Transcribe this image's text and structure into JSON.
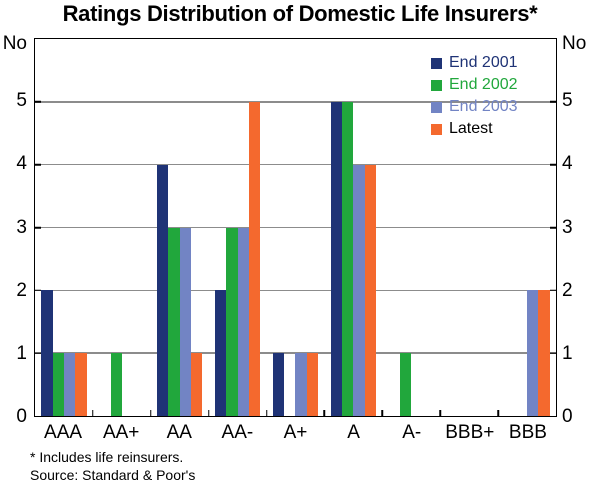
{
  "title": "Ratings Distribution of Domestic Life Insurers*",
  "axis": {
    "unit_left": "No",
    "unit_right": "No"
  },
  "footnotes": {
    "note": "* Includes life reinsurers.",
    "source": "Source: Standard & Poor's"
  },
  "colors": {
    "end_2001": "#1f3376",
    "end_2002": "#21a73c",
    "end_2003": "#7284c4",
    "latest": "#f4692e",
    "gridline": "#8c8c8c",
    "frame": "#000000"
  },
  "chart_data": {
    "type": "bar",
    "title": "Ratings Distribution of Domestic Life Insurers*",
    "xlabel": "",
    "ylabel": "No",
    "categories": [
      "AAA",
      "AA+",
      "AA",
      "AA-",
      "A+",
      "A",
      "A-",
      "BBB+",
      "BBB"
    ],
    "series": [
      {
        "name": "End 2001",
        "color": "#1f3376",
        "label_color": "#1f3376",
        "values": [
          2,
          0,
          4,
          2,
          1,
          5,
          0,
          0,
          0
        ]
      },
      {
        "name": "End 2002",
        "color": "#21a73c",
        "label_color": "#21a73c",
        "values": [
          1,
          1,
          3,
          3,
          0,
          5,
          1,
          0,
          0
        ]
      },
      {
        "name": "End 2003",
        "color": "#7284c4",
        "label_color": "#7284c4",
        "values": [
          1,
          0,
          3,
          3,
          1,
          4,
          0,
          0,
          2
        ]
      },
      {
        "name": "Latest",
        "color": "#f4692e",
        "label_color": "#000000",
        "values": [
          1,
          0,
          1,
          5,
          1,
          4,
          0,
          0,
          2
        ]
      }
    ],
    "ylim": [
      0,
      6
    ],
    "yticks": [
      0,
      1,
      2,
      3,
      4,
      5
    ],
    "grid": true,
    "legend_position": "top-right",
    "footnote": "* Includes life reinsurers.",
    "source": "Source: Standard & Poor's"
  }
}
